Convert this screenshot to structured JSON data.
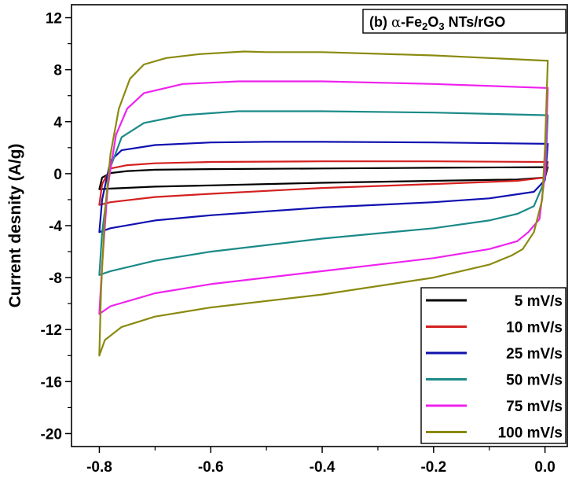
{
  "chart_data": {
    "type": "line",
    "title": "",
    "panel_label": {
      "prefix": "(b) ",
      "alpha": "α",
      "material": "-Fe",
      "sub1": "2",
      "o": "O",
      "sub2": "3",
      "suffix": " NTs/rGO"
    },
    "xlabel": "",
    "ylabel": "Current desnity (A/g)",
    "xlim": [
      -0.85,
      0.04
    ],
    "ylim": [
      -21,
      13
    ],
    "xticks": [
      -0.8,
      -0.6,
      -0.4,
      -0.2,
      0.0
    ],
    "xtick_labels": [
      "-0.8",
      "-0.6",
      "-0.4",
      "-0.2",
      "0.0"
    ],
    "yticks": [
      12,
      8,
      4,
      0,
      -4,
      -8,
      -12,
      -16,
      -20
    ],
    "ytick_labels": [
      "12",
      "8",
      "4",
      "0",
      "-4",
      "-8",
      "-12",
      "-16",
      "-20"
    ],
    "legend_position": "bottom-right",
    "series": [
      {
        "name": "5 mV/s",
        "color": "#000000",
        "upper": [
          [
            -0.8,
            -1.2
          ],
          [
            -0.795,
            -0.3
          ],
          [
            -0.78,
            0.05
          ],
          [
            -0.75,
            0.2
          ],
          [
            -0.7,
            0.3
          ],
          [
            -0.6,
            0.35
          ],
          [
            -0.4,
            0.4
          ],
          [
            -0.2,
            0.45
          ],
          [
            0.0,
            0.5
          ]
        ],
        "lower": [
          [
            0.005,
            0.5
          ],
          [
            0.0,
            -0.3
          ],
          [
            -0.05,
            -0.45
          ],
          [
            -0.2,
            -0.55
          ],
          [
            -0.4,
            -0.7
          ],
          [
            -0.6,
            -0.9
          ],
          [
            -0.7,
            -1.0
          ],
          [
            -0.78,
            -1.15
          ],
          [
            -0.8,
            -1.2
          ]
        ]
      },
      {
        "name": "10 mV/s",
        "color": "#d42020",
        "upper": [
          [
            -0.8,
            -2.4
          ],
          [
            -0.795,
            -0.8
          ],
          [
            -0.78,
            0.4
          ],
          [
            -0.75,
            0.65
          ],
          [
            -0.7,
            0.8
          ],
          [
            -0.6,
            0.9
          ],
          [
            -0.4,
            0.95
          ],
          [
            -0.2,
            0.95
          ],
          [
            0.0,
            0.9
          ]
        ],
        "lower": [
          [
            0.005,
            0.9
          ],
          [
            0.0,
            -0.3
          ],
          [
            -0.05,
            -0.55
          ],
          [
            -0.2,
            -0.8
          ],
          [
            -0.4,
            -1.1
          ],
          [
            -0.6,
            -1.55
          ],
          [
            -0.7,
            -1.8
          ],
          [
            -0.78,
            -2.2
          ],
          [
            -0.8,
            -2.4
          ]
        ]
      },
      {
        "name": "25 mV/s",
        "color": "#1010b0",
        "upper": [
          [
            -0.8,
            -4.5
          ],
          [
            -0.795,
            -2.0
          ],
          [
            -0.78,
            1.0
          ],
          [
            -0.76,
            1.8
          ],
          [
            -0.7,
            2.2
          ],
          [
            -0.6,
            2.4
          ],
          [
            -0.5,
            2.45
          ],
          [
            -0.4,
            2.45
          ],
          [
            -0.2,
            2.4
          ],
          [
            0.0,
            2.3
          ]
        ],
        "lower": [
          [
            0.005,
            2.3
          ],
          [
            0.0,
            -0.5
          ],
          [
            -0.02,
            -1.4
          ],
          [
            -0.1,
            -1.9
          ],
          [
            -0.2,
            -2.2
          ],
          [
            -0.4,
            -2.6
          ],
          [
            -0.6,
            -3.2
          ],
          [
            -0.7,
            -3.6
          ],
          [
            -0.78,
            -4.2
          ],
          [
            -0.8,
            -4.5
          ]
        ]
      },
      {
        "name": "50 mV/s",
        "color": "#1a8a88",
        "upper": [
          [
            -0.8,
            -7.8
          ],
          [
            -0.795,
            -4.5
          ],
          [
            -0.78,
            0.5
          ],
          [
            -0.76,
            2.8
          ],
          [
            -0.72,
            3.9
          ],
          [
            -0.65,
            4.5
          ],
          [
            -0.55,
            4.8
          ],
          [
            -0.4,
            4.8
          ],
          [
            -0.2,
            4.7
          ],
          [
            0.0,
            4.5
          ]
        ],
        "lower": [
          [
            0.005,
            4.5
          ],
          [
            0.0,
            -0.5
          ],
          [
            -0.02,
            -2.5
          ],
          [
            -0.05,
            -3.1
          ],
          [
            -0.1,
            -3.6
          ],
          [
            -0.2,
            -4.2
          ],
          [
            -0.4,
            -5.0
          ],
          [
            -0.6,
            -6.0
          ],
          [
            -0.7,
            -6.7
          ],
          [
            -0.78,
            -7.5
          ],
          [
            -0.8,
            -7.8
          ]
        ]
      },
      {
        "name": "75 mV/s",
        "color": "#ee22ee",
        "upper": [
          [
            -0.8,
            -10.8
          ],
          [
            -0.795,
            -7.0
          ],
          [
            -0.785,
            -1.0
          ],
          [
            -0.77,
            3.0
          ],
          [
            -0.75,
            5.0
          ],
          [
            -0.72,
            6.2
          ],
          [
            -0.65,
            6.9
          ],
          [
            -0.55,
            7.1
          ],
          [
            -0.4,
            7.1
          ],
          [
            -0.2,
            6.9
          ],
          [
            0.0,
            6.6
          ]
        ],
        "lower": [
          [
            0.005,
            6.6
          ],
          [
            0.0,
            0.0
          ],
          [
            -0.01,
            -3.5
          ],
          [
            -0.03,
            -4.5
          ],
          [
            -0.05,
            -5.2
          ],
          [
            -0.1,
            -5.8
          ],
          [
            -0.2,
            -6.5
          ],
          [
            -0.4,
            -7.5
          ],
          [
            -0.6,
            -8.5
          ],
          [
            -0.7,
            -9.2
          ],
          [
            -0.78,
            -10.2
          ],
          [
            -0.8,
            -10.8
          ]
        ]
      },
      {
        "name": "100 mV/s",
        "color": "#8a8a10",
        "upper": [
          [
            -0.8,
            -14.0
          ],
          [
            -0.797,
            -9.0
          ],
          [
            -0.79,
            -3.0
          ],
          [
            -0.78,
            1.5
          ],
          [
            -0.765,
            5.0
          ],
          [
            -0.745,
            7.3
          ],
          [
            -0.72,
            8.4
          ],
          [
            -0.68,
            8.9
          ],
          [
            -0.62,
            9.2
          ],
          [
            -0.54,
            9.4
          ],
          [
            -0.5,
            9.35
          ],
          [
            -0.4,
            9.35
          ],
          [
            -0.2,
            9.1
          ],
          [
            0.0,
            8.7
          ]
        ],
        "lower": [
          [
            0.005,
            8.7
          ],
          [
            0.0,
            2.0
          ],
          [
            -0.005,
            -2.0
          ],
          [
            -0.02,
            -4.5
          ],
          [
            -0.04,
            -5.8
          ],
          [
            -0.06,
            -6.3
          ],
          [
            -0.1,
            -7.0
          ],
          [
            -0.2,
            -8.0
          ],
          [
            -0.4,
            -9.3
          ],
          [
            -0.6,
            -10.3
          ],
          [
            -0.7,
            -11.0
          ],
          [
            -0.76,
            -11.8
          ],
          [
            -0.79,
            -12.8
          ],
          [
            -0.8,
            -14.0
          ]
        ]
      }
    ]
  }
}
